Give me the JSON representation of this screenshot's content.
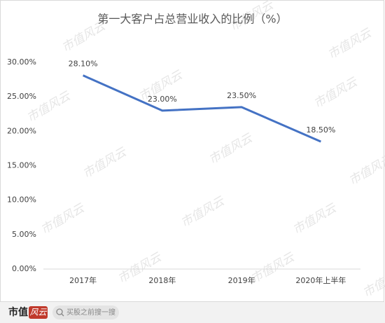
{
  "chart_data": {
    "type": "line",
    "title": "第一大客户占总营业收入的比例（%）",
    "categories": [
      "2017年",
      "2018年",
      "2019年",
      "2020年上半年"
    ],
    "series": [
      {
        "name": "比例",
        "color": "#4472c4",
        "values": [
          28.1,
          23.0,
          23.5,
          18.5
        ],
        "value_labels": [
          "28.10%",
          "23.00%",
          "23.50%",
          "18.50%"
        ]
      }
    ],
    "ylim": [
      0,
      30
    ],
    "yticks": [
      {
        "value": 0,
        "label": "0.00%"
      },
      {
        "value": 5,
        "label": "5.00%"
      },
      {
        "value": 10,
        "label": "10.00%"
      },
      {
        "value": 15,
        "label": "15.00%"
      },
      {
        "value": 20,
        "label": "20.00%"
      },
      {
        "value": 25,
        "label": "25.00%"
      },
      {
        "value": 30,
        "label": "30.00%"
      }
    ],
    "grid": false
  },
  "watermark": "市值风云",
  "footer": {
    "logo_main": "市值",
    "logo_accent": "风云",
    "search": "买股之前搜一搜"
  }
}
